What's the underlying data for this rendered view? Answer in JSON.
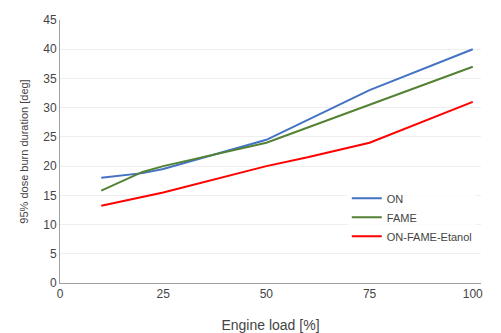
{
  "chart_data": {
    "type": "line",
    "xlabel": "Engine load [%]",
    "ylabel": "95% dose burn duration [deg]",
    "series": [
      {
        "name": "ON",
        "color": "#4472C4",
        "x": [
          10,
          20,
          25,
          50,
          75,
          100
        ],
        "values": [
          18.0,
          18.8,
          19.5,
          24.5,
          33.0,
          40.0
        ]
      },
      {
        "name": "FAME",
        "color": "#548235",
        "x": [
          10,
          20,
          25,
          50,
          75,
          100
        ],
        "values": [
          15.8,
          19.0,
          20.0,
          24.0,
          30.5,
          37.0
        ]
      },
      {
        "name": "ON-FAME-Etanol",
        "color": "#FF0000",
        "x": [
          10,
          25,
          50,
          60,
          75,
          100
        ],
        "values": [
          13.2,
          15.5,
          20.0,
          21.5,
          24.0,
          31.0
        ]
      }
    ],
    "xlim": [
      0,
      102
    ],
    "ylim": [
      0,
      45
    ],
    "xticks": [
      0,
      25,
      50,
      75,
      100
    ],
    "yticks": [
      0,
      5,
      10,
      15,
      20,
      25,
      30,
      35,
      40,
      45
    ],
    "grid": "y",
    "legend": "right"
  }
}
